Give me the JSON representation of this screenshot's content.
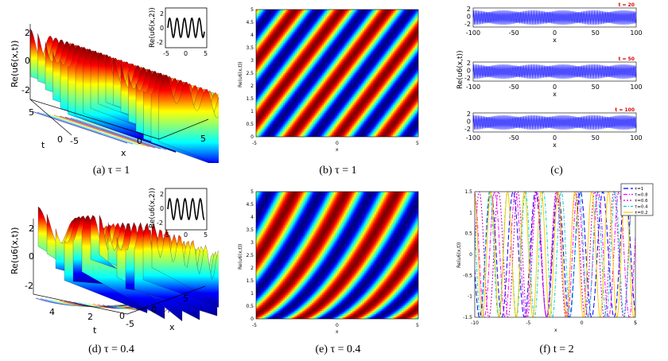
{
  "panels": {
    "a": {
      "caption": "(a) τ = 1",
      "zlabel": "Re(u6(x,t))",
      "ticks_z": [
        "2",
        "0",
        "-2"
      ],
      "ticks_t": [
        "5",
        "0"
      ],
      "ticks_x": [
        "-5",
        "0",
        "5"
      ],
      "tlabel": "t",
      "xlabel": "x",
      "inset_ylabel": "Re(u6(x,2))",
      "inset_ticks_y": [
        "2",
        "0",
        "-2"
      ],
      "inset_ticks_x": [
        "-5",
        "0",
        "5"
      ]
    },
    "b": {
      "caption": "(b) τ = 1",
      "ylabel": "Re(u6(x,t))",
      "xlabel": "x",
      "ticks_y": [
        "5",
        "4.5",
        "4",
        "3.5",
        "3",
        "2.5",
        "2",
        "1.5",
        "1",
        "0.5",
        "0"
      ],
      "ticks_x": [
        "-5",
        "0",
        "5"
      ]
    },
    "c": {
      "caption": "(c)",
      "ylabel": "Re(u6(x,t))",
      "subplots": [
        {
          "label": "t = 20",
          "xlabel": "x"
        },
        {
          "label": "t = 50",
          "xlabel": "x"
        },
        {
          "label": "t = 100",
          "xlabel": "x"
        }
      ],
      "ticks_y": [
        "2",
        "0",
        "-2"
      ],
      "ticks_x": [
        "-100",
        "-50",
        "0",
        "50",
        "100"
      ]
    },
    "d": {
      "caption": "(d) τ = 0.4",
      "zlabel": "Re(u6(x,t))",
      "ticks_z": [
        "2",
        "0",
        "-2"
      ],
      "ticks_t": [
        "4",
        "2",
        "0"
      ],
      "ticks_x": [
        "-5",
        "0",
        "5"
      ],
      "tlabel": "t",
      "xlabel": "x",
      "inset_ylabel": "Re(u6(x,2))",
      "inset_ticks_y": [
        "2",
        "0",
        "-2"
      ],
      "inset_ticks_x": [
        "-5",
        "0",
        "5"
      ]
    },
    "e": {
      "caption": "(e) τ = 0.4",
      "ylabel": "Re(u6(x,t))",
      "xlabel": "x",
      "ticks_y": [
        "5",
        "4.5",
        "4",
        "3.5",
        "3",
        "2.5",
        "2",
        "1.5",
        "1",
        "0.5",
        "0"
      ],
      "ticks_x": [
        "-5",
        "0",
        "5"
      ]
    },
    "f": {
      "caption": "(f) t = 2",
      "ylabel": "Re(u6(x,t))",
      "xlabel": "x",
      "ticks_y": [
        "1.5",
        "1",
        "0.5",
        "0",
        "-0.5",
        "-1",
        "-1.5"
      ],
      "ticks_x": [
        "-10",
        "-5",
        "0",
        "5"
      ],
      "legend": [
        {
          "label": "τ=1",
          "color": "#0000ff"
        },
        {
          "label": "τ=0.8",
          "color": "#ff00ff"
        },
        {
          "label": "τ=0.6",
          "color": "#cc00cc"
        },
        {
          "label": "τ=0.4",
          "color": "#00cccc"
        },
        {
          "label": "τ=0.2",
          "color": "#ffcc00"
        }
      ]
    }
  },
  "chart_data": [
    {
      "type": "area",
      "title": "(a) τ = 1",
      "xlabel": "x",
      "ylabel": "t",
      "zlabel": "Re(u6(x,t))",
      "xlim": [
        -5,
        5
      ],
      "ylim": [
        0,
        5
      ],
      "zlim": [
        -2,
        2
      ]
    },
    {
      "type": "heatmap",
      "title": "(b) τ = 1",
      "xlabel": "x",
      "ylabel": "Re(u6(x,t))",
      "xlim": [
        -5,
        5
      ],
      "ylim": [
        0,
        5
      ]
    },
    {
      "type": "line",
      "title": "(c)",
      "series": [
        {
          "name": "t = 20"
        },
        {
          "name": "t = 50"
        },
        {
          "name": "t = 100"
        }
      ],
      "xlim": [
        -100,
        100
      ],
      "ylim": [
        -2,
        2
      ]
    },
    {
      "type": "area",
      "title": "(d) τ = 0.4",
      "xlabel": "x",
      "ylabel": "t",
      "zlabel": "Re(u6(x,t))",
      "xlim": [
        -5,
        5
      ],
      "ylim": [
        0,
        5
      ],
      "zlim": [
        -2,
        2
      ]
    },
    {
      "type": "heatmap",
      "title": "(e) τ = 0.4",
      "xlabel": "x",
      "ylabel": "Re(u6(x,t))",
      "xlim": [
        -5,
        5
      ],
      "ylim": [
        0,
        5
      ]
    },
    {
      "type": "line",
      "title": "(f) t = 2",
      "xlabel": "x",
      "ylabel": "Re(u6(x,t))",
      "xlim": [
        -10,
        5
      ],
      "ylim": [
        -1.5,
        1.5
      ],
      "series": [
        {
          "name": "τ=1"
        },
        {
          "name": "τ=0.8"
        },
        {
          "name": "τ=0.6"
        },
        {
          "name": "τ=0.4"
        },
        {
          "name": "τ=0.2"
        }
      ]
    }
  ]
}
